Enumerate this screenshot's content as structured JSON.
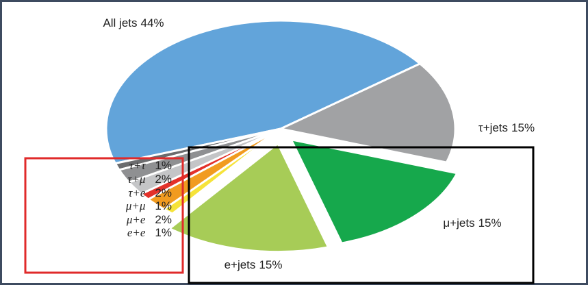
{
  "chart_data": {
    "type": "pie",
    "categories": [
      "All jets",
      "τ+τ",
      "τ+μ",
      "τ+e",
      "μ+μ",
      "μ+e",
      "e+e",
      "e+jets",
      "μ+jets",
      "τ+jets"
    ],
    "values": [
      44,
      1,
      2,
      2,
      1,
      2,
      1,
      15,
      15,
      15
    ],
    "value_labels": [
      "44%",
      "1%",
      "2%",
      "2%",
      "1%",
      "2%",
      "1%",
      "15%",
      "15%",
      "15%"
    ],
    "colors": [
      "#62a4da",
      "#6b6c6e",
      "#8f9092",
      "#c4c5c7",
      "#e3312a",
      "#f19b20",
      "#f6e33a",
      "#a7cc57",
      "#16a84c",
      "#a1a2a4"
    ],
    "explode": [
      false,
      false,
      false,
      false,
      false,
      false,
      false,
      true,
      true,
      false
    ]
  }
}
